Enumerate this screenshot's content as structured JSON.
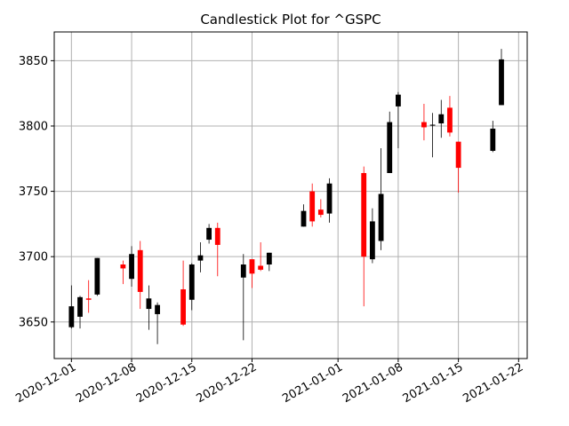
{
  "chart_data": {
    "type": "candlestick",
    "title": "Candlestick Plot for ^GSPC",
    "xlabel": "",
    "ylabel": "",
    "grid": true,
    "colors": {
      "up": "#000000",
      "down": "#ff0000",
      "grid": "#b0b0b0"
    },
    "xlim": [
      "2020-11-29",
      "2021-01-23"
    ],
    "ylim": [
      3622,
      3872
    ],
    "x_ticks": [
      "2020-12-01",
      "2020-12-08",
      "2020-12-15",
      "2020-12-22",
      "2021-01-01",
      "2021-01-08",
      "2021-01-15",
      "2021-01-22"
    ],
    "y_ticks": [
      3650,
      3700,
      3750,
      3800,
      3850
    ],
    "candles": [
      {
        "date": "2020-12-01",
        "open": 3646,
        "high": 3678,
        "low": 3645,
        "close": 3662
      },
      {
        "date": "2020-12-02",
        "open": 3654,
        "high": 3670,
        "low": 3645,
        "close": 3669
      },
      {
        "date": "2020-12-03",
        "open": 3668,
        "high": 3682,
        "low": 3657,
        "close": 3667
      },
      {
        "date": "2020-12-04",
        "open": 3671,
        "high": 3699,
        "low": 3670,
        "close": 3699
      },
      {
        "date": "2020-12-07",
        "open": 3694,
        "high": 3697,
        "low": 3679,
        "close": 3691
      },
      {
        "date": "2020-12-08",
        "open": 3683,
        "high": 3708,
        "low": 3677,
        "close": 3702
      },
      {
        "date": "2020-12-09",
        "open": 3705,
        "high": 3712,
        "low": 3660,
        "close": 3673
      },
      {
        "date": "2020-12-10",
        "open": 3660,
        "high": 3678,
        "low": 3644,
        "close": 3668
      },
      {
        "date": "2020-12-11",
        "open": 3656,
        "high": 3665,
        "low": 3633,
        "close": 3663
      },
      {
        "date": "2020-12-14",
        "open": 3675,
        "high": 3697,
        "low": 3647,
        "close": 3648
      },
      {
        "date": "2020-12-15",
        "open": 3667,
        "high": 3695,
        "low": 3659,
        "close": 3694
      },
      {
        "date": "2020-12-16",
        "open": 3697,
        "high": 3711,
        "low": 3688,
        "close": 3701
      },
      {
        "date": "2020-12-17",
        "open": 3713,
        "high": 3725,
        "low": 3710,
        "close": 3722
      },
      {
        "date": "2020-12-18",
        "open": 3722,
        "high": 3726,
        "low": 3685,
        "close": 3709
      },
      {
        "date": "2020-12-21",
        "open": 3684,
        "high": 3702,
        "low": 3636,
        "close": 3694
      },
      {
        "date": "2020-12-22",
        "open": 3698,
        "high": 3698,
        "low": 3676,
        "close": 3687
      },
      {
        "date": "2020-12-23",
        "open": 3693,
        "high": 3711,
        "low": 3689,
        "close": 3690
      },
      {
        "date": "2020-12-24",
        "open": 3694,
        "high": 3703,
        "low": 3689,
        "close": 3703
      },
      {
        "date": "2020-12-28",
        "open": 3723,
        "high": 3740,
        "low": 3723,
        "close": 3735
      },
      {
        "date": "2020-12-29",
        "open": 3750,
        "high": 3756,
        "low": 3723,
        "close": 3727
      },
      {
        "date": "2020-12-30",
        "open": 3736,
        "high": 3744,
        "low": 3730,
        "close": 3732
      },
      {
        "date": "2020-12-31",
        "open": 3733,
        "high": 3760,
        "low": 3726,
        "close": 3756
      },
      {
        "date": "2021-01-04",
        "open": 3764,
        "high": 3769,
        "low": 3662,
        "close": 3700
      },
      {
        "date": "2021-01-05",
        "open": 3698,
        "high": 3737,
        "low": 3695,
        "close": 3727
      },
      {
        "date": "2021-01-06",
        "open": 3712,
        "high": 3783,
        "low": 3705,
        "close": 3748
      },
      {
        "date": "2021-01-07",
        "open": 3764,
        "high": 3811,
        "low": 3764,
        "close": 3803
      },
      {
        "date": "2021-01-08",
        "open": 3815,
        "high": 3826,
        "low": 3783,
        "close": 3824
      },
      {
        "date": "2021-01-11",
        "open": 3803,
        "high": 3817,
        "low": 3789,
        "close": 3799
      },
      {
        "date": "2021-01-12",
        "open": 3801,
        "high": 3810,
        "low": 3776,
        "close": 3801
      },
      {
        "date": "2021-01-13",
        "open": 3802,
        "high": 3820,
        "low": 3791,
        "close": 3809
      },
      {
        "date": "2021-01-14",
        "open": 3814,
        "high": 3823,
        "low": 3792,
        "close": 3795
      },
      {
        "date": "2021-01-15",
        "open": 3788,
        "high": 3788,
        "low": 3749,
        "close": 3768
      },
      {
        "date": "2021-01-19",
        "open": 3781,
        "high": 3804,
        "low": 3780,
        "close": 3798
      },
      {
        "date": "2021-01-20",
        "open": 3816,
        "high": 3859,
        "low": 3816,
        "close": 3851
      }
    ]
  }
}
